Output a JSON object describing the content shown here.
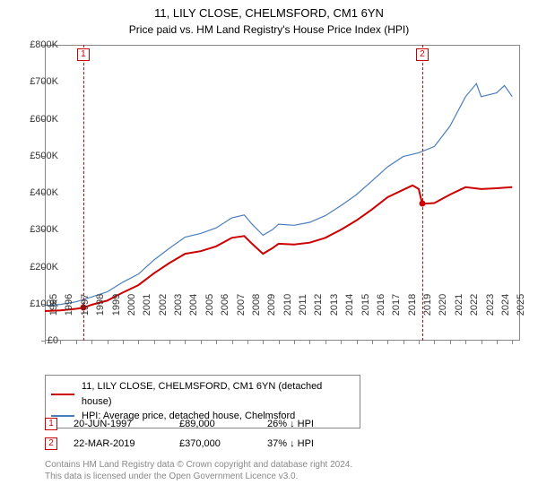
{
  "title": "11, LILY CLOSE, CHELMSFORD, CM1 6YN",
  "subtitle": "Price paid vs. HM Land Registry's House Price Index (HPI)",
  "chart": {
    "type": "line",
    "background_color": "#ffffff",
    "border_color": "#888888",
    "x": {
      "min": 1995,
      "max": 2025.5,
      "ticks": [
        1995,
        1996,
        1997,
        1998,
        1999,
        2000,
        2001,
        2002,
        2003,
        2004,
        2005,
        2006,
        2007,
        2008,
        2009,
        2010,
        2011,
        2012,
        2013,
        2014,
        2015,
        2016,
        2017,
        2018,
        2019,
        2020,
        2021,
        2022,
        2023,
        2024,
        2025
      ],
      "label_fontsize": 11,
      "label_rotation": -90
    },
    "y": {
      "min": 0,
      "max": 800000,
      "ticks": [
        0,
        100000,
        200000,
        300000,
        400000,
        500000,
        600000,
        700000,
        800000
      ],
      "tick_labels": [
        "£0",
        "£100K",
        "£200K",
        "£300K",
        "£400K",
        "£500K",
        "£600K",
        "£700K",
        "£800K"
      ],
      "label_fontsize": 11
    },
    "series": [
      {
        "id": "price_paid",
        "label": "11, LILY CLOSE, CHELMSFORD, CM1 6YN (detached house)",
        "color": "#cc0000",
        "line_width": 2,
        "points": [
          [
            1995,
            80000
          ],
          [
            1996,
            82000
          ],
          [
            1997,
            86000
          ],
          [
            1997.47,
            89000
          ],
          [
            1998,
            97000
          ],
          [
            1999,
            108000
          ],
          [
            2000,
            130000
          ],
          [
            2001,
            150000
          ],
          [
            2002,
            182000
          ],
          [
            2003,
            210000
          ],
          [
            2004,
            235000
          ],
          [
            2005,
            242000
          ],
          [
            2006,
            255000
          ],
          [
            2007,
            278000
          ],
          [
            2007.8,
            283000
          ],
          [
            2008.3,
            262000
          ],
          [
            2009,
            235000
          ],
          [
            2009.6,
            250000
          ],
          [
            2010,
            262000
          ],
          [
            2011,
            260000
          ],
          [
            2012,
            265000
          ],
          [
            2013,
            278000
          ],
          [
            2014,
            300000
          ],
          [
            2015,
            325000
          ],
          [
            2016,
            355000
          ],
          [
            2017,
            388000
          ],
          [
            2018,
            408000
          ],
          [
            2018.6,
            420000
          ],
          [
            2019,
            410000
          ],
          [
            2019.22,
            370000
          ],
          [
            2020,
            372000
          ],
          [
            2021,
            395000
          ],
          [
            2022,
            415000
          ],
          [
            2023,
            410000
          ],
          [
            2024,
            412000
          ],
          [
            2025,
            415000
          ]
        ]
      },
      {
        "id": "hpi",
        "label": "HPI: Average price, detached house, Chelmsford",
        "color": "#4a7ebb",
        "line_width": 1.2,
        "points": [
          [
            1995,
            95000
          ],
          [
            1996,
            98000
          ],
          [
            1997,
            105000
          ],
          [
            1998,
            118000
          ],
          [
            1999,
            132000
          ],
          [
            2000,
            158000
          ],
          [
            2001,
            180000
          ],
          [
            2002,
            218000
          ],
          [
            2003,
            250000
          ],
          [
            2004,
            280000
          ],
          [
            2005,
            290000
          ],
          [
            2006,
            305000
          ],
          [
            2007,
            332000
          ],
          [
            2007.8,
            340000
          ],
          [
            2008.3,
            315000
          ],
          [
            2009,
            285000
          ],
          [
            2009.6,
            300000
          ],
          [
            2010,
            315000
          ],
          [
            2011,
            312000
          ],
          [
            2012,
            320000
          ],
          [
            2013,
            338000
          ],
          [
            2014,
            365000
          ],
          [
            2015,
            395000
          ],
          [
            2016,
            432000
          ],
          [
            2017,
            470000
          ],
          [
            2018,
            498000
          ],
          [
            2019,
            508000
          ],
          [
            2020,
            525000
          ],
          [
            2021,
            580000
          ],
          [
            2022,
            660000
          ],
          [
            2022.7,
            695000
          ],
          [
            2023,
            660000
          ],
          [
            2024,
            670000
          ],
          [
            2024.5,
            690000
          ],
          [
            2025,
            660000
          ]
        ]
      }
    ],
    "sale_markers": [
      {
        "n": "1",
        "year": 1997.47,
        "price": 89000,
        "color": "#cc0000"
      },
      {
        "n": "2",
        "year": 2019.22,
        "price": 370000,
        "color": "#cc0000"
      }
    ]
  },
  "legend": {
    "items": [
      {
        "color": "#cc0000",
        "label": "11, LILY CLOSE, CHELMSFORD, CM1 6YN (detached house)"
      },
      {
        "color": "#4a7ebb",
        "label": "HPI: Average price, detached house, Chelmsford"
      }
    ]
  },
  "sales": [
    {
      "n": "1",
      "date": "20-JUN-1997",
      "price": "£89,000",
      "delta": "26% ↓ HPI",
      "color": "#cc0000"
    },
    {
      "n": "2",
      "date": "22-MAR-2019",
      "price": "£370,000",
      "delta": "37% ↓ HPI",
      "color": "#cc0000"
    }
  ],
  "footnote_line1": "Contains HM Land Registry data © Crown copyright and database right 2024.",
  "footnote_line2": "This data is licensed under the Open Government Licence v3.0."
}
